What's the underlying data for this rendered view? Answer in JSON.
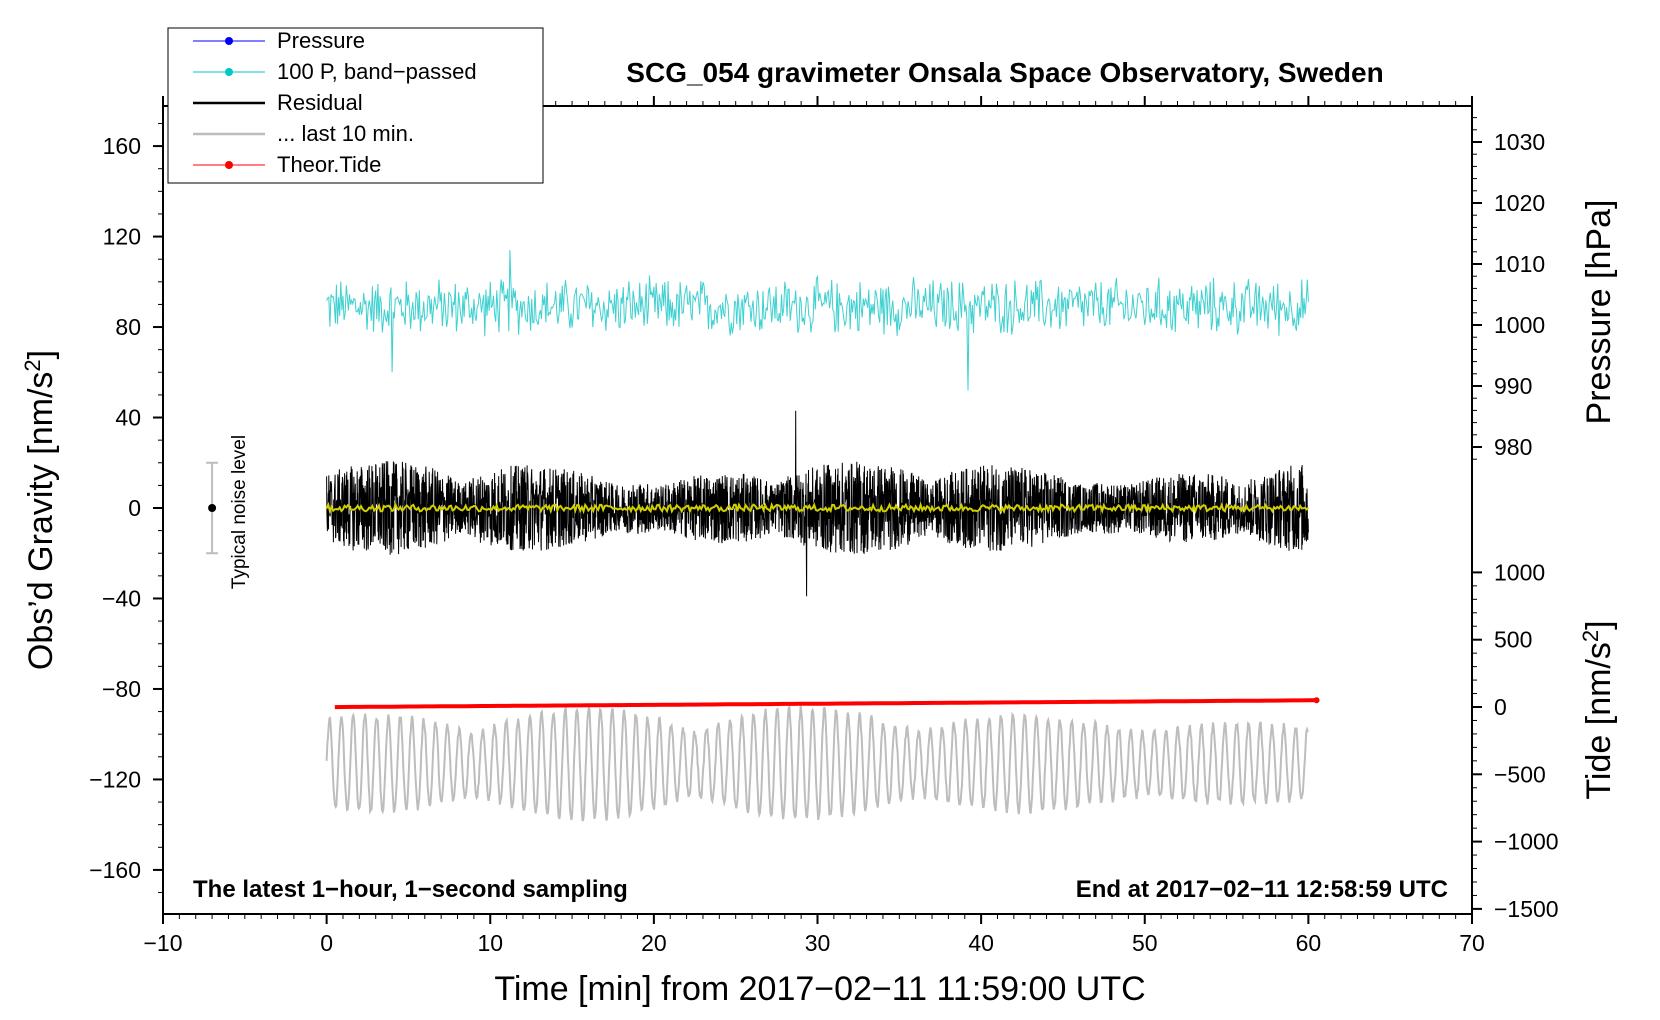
{
  "chart_data": {
    "type": "line",
    "title": "SCG_054 gravimeter Onsala Space Observatory, Sweden",
    "xlabel": "Time [min] from 2017−02−11 11:59:00 UTC",
    "ylabel_left": "Obs’d Gravity [nm/s²]",
    "ylabel_left_main": "Obs’d Gravity [nm/s",
    "ylabel_left_sup": "2",
    "ylabel_left_end": "]",
    "ylabel_right_pressure": "Pressure [hPa]",
    "ylabel_right_tide": "Tide [nm/s²]",
    "ylabel_right_tide_main": "Tide [nm/s",
    "ylabel_right_tide_sup": "2",
    "ylabel_right_tide_end": "]",
    "xlim": [
      -10,
      70
    ],
    "ylim_left": [
      -180,
      175
    ],
    "pressure_ticks": [
      980,
      990,
      1000,
      1010,
      1020,
      1030
    ],
    "tide_ticks": [
      -1500,
      -1000,
      -500,
      0,
      500,
      1000
    ],
    "x_ticks": [
      -10,
      0,
      10,
      20,
      30,
      40,
      50,
      60,
      70
    ],
    "x_tick_labels": [
      "−10",
      "0",
      "10",
      "20",
      "30",
      "40",
      "50",
      "60",
      "70"
    ],
    "y_ticks": [
      -160,
      -120,
      -80,
      -40,
      0,
      40,
      80,
      120,
      160
    ],
    "y_tick_labels": [
      "−160",
      "−120",
      "−80",
      "−40",
      "0",
      "40",
      "80",
      "120",
      "160"
    ],
    "pressure_tick_labels": [
      "980",
      "990",
      "1000",
      "1010",
      "1020",
      "1030"
    ],
    "tide_tick_labels": [
      "−1500",
      "−1000",
      "−500",
      "0",
      "500",
      "1000"
    ],
    "note_left": "The latest 1−hour, 1−second sampling",
    "note_right": "End at 2017−02−11 12:58:59 UTC",
    "noise_label": "Typical noise level",
    "noise_bar": {
      "x": -7,
      "center": 0,
      "low": -20,
      "high": 20
    },
    "legend": [
      {
        "label": "Pressure",
        "color": "#0000ff",
        "marker": true
      },
      {
        "label": "100 P, band−passed",
        "color": "#00c8c8",
        "marker": true
      },
      {
        "label": "Residual",
        "color": "#000000",
        "marker": false
      },
      {
        "label": "... last 10 min.",
        "color": "#bdbdbd",
        "marker": false
      },
      {
        "label": "Theor.Tide",
        "color": "#ff0000",
        "marker": true
      }
    ],
    "series": [
      {
        "name": "100 P, band−passed",
        "color": "#3fd0d0",
        "x_range": [
          0,
          60
        ],
        "center": 89,
        "amplitude": 12,
        "min": 52,
        "max": 114
      },
      {
        "name": "Residual",
        "color": "#000000",
        "x_range": [
          0,
          60
        ],
        "center": 0,
        "amplitude": 20,
        "min": -39,
        "max": 43
      },
      {
        "name": "Residual smoothed",
        "color": "#d0d000",
        "x_range": [
          0,
          60
        ],
        "center": 0,
        "amplitude": 1.5
      },
      {
        "name": "Theor.Tide",
        "color": "#ff0000",
        "x_range": [
          0.5,
          60.5
        ],
        "start": -88,
        "end": -85
      },
      {
        "name": "... last 10 min.",
        "color": "#bdbdbd",
        "x_range": [
          0,
          60
        ],
        "center": -113,
        "amplitude": 20,
        "min": -146,
        "max": -73
      }
    ]
  }
}
